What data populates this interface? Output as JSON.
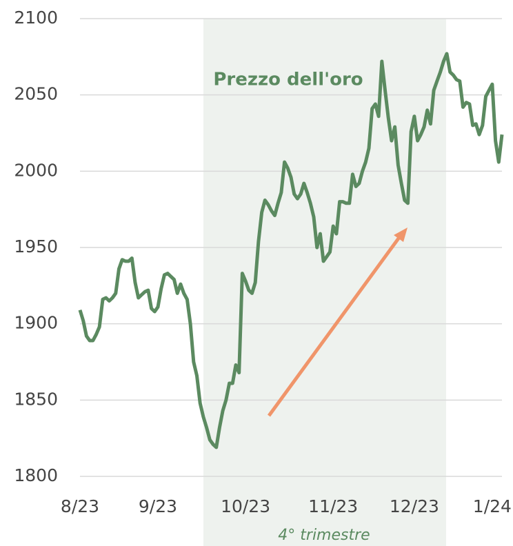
{
  "chart_data": {
    "type": "line",
    "annotations": [
      "Prezzo dell'oro",
      "4° trimestre"
    ],
    "categories": [
      "8/23",
      null,
      null,
      null,
      null,
      null,
      null,
      null,
      null,
      null,
      null,
      null,
      null,
      null,
      null,
      null,
      null,
      null,
      null,
      null,
      null,
      null,
      null,
      null,
      "9/23",
      null,
      null,
      null,
      null,
      null,
      null,
      null,
      null,
      null,
      null,
      null,
      null,
      null,
      null,
      null,
      null,
      null,
      null,
      null,
      null,
      null,
      null,
      null,
      null,
      null,
      null,
      "10/23",
      null,
      null,
      null,
      null,
      null,
      null,
      null,
      null,
      null,
      null,
      null,
      null,
      null,
      null,
      null,
      null,
      null,
      null,
      null,
      null,
      null,
      null,
      null,
      null,
      null,
      null,
      "11/23",
      null,
      null,
      null,
      null,
      null,
      null,
      null,
      null,
      null,
      null,
      null,
      null,
      null,
      null,
      null,
      null,
      null,
      null,
      null,
      null,
      null,
      null,
      null,
      null,
      "12/23",
      null,
      null,
      null,
      null,
      null,
      null,
      null,
      null,
      null,
      null,
      null,
      null,
      null,
      null,
      null,
      null,
      null,
      null,
      null,
      null,
      null,
      null,
      null,
      "1/24",
      null,
      null,
      null
    ],
    "series": [
      {
        "name": "Prezzo dell'oro",
        "color": "#5b8a60",
        "values": [
          1909,
          1902,
          1892,
          1889,
          1889,
          1893,
          1898,
          1916,
          1917,
          1915,
          1917,
          1920,
          1936,
          1942,
          1941,
          1941,
          1943,
          1927,
          1917,
          1919,
          1921,
          1922,
          1910,
          1908,
          1911,
          1923,
          1932,
          1933,
          1931,
          1929,
          1920,
          1926,
          1920,
          1916,
          1900,
          1875,
          1866,
          1848,
          1839,
          1832,
          1824,
          1821,
          1819,
          1832,
          1843,
          1850,
          1861,
          1861,
          1873,
          1868,
          1933,
          1928,
          1922,
          1920,
          1927,
          1954,
          1973,
          1981,
          1978,
          1974,
          1971,
          1979,
          1986,
          2006,
          2002,
          1996,
          1985,
          1982,
          1985,
          1992,
          1986,
          1979,
          1970,
          1950,
          1959,
          1941,
          1944,
          1947,
          1964,
          1959,
          1980,
          1980,
          1979,
          1979,
          1998,
          1990,
          1992,
          2000,
          2006,
          2015,
          2041,
          2044,
          2036,
          2072,
          2053,
          2035,
          2020,
          2029,
          2004,
          1992,
          1981,
          1979,
          2026,
          2036,
          2020,
          2024,
          2029,
          2040,
          2031,
          2053,
          2059,
          2065,
          2072,
          2077,
          2065,
          2063,
          2060,
          2059,
          2042,
          2045,
          2044,
          2030,
          2031,
          2024,
          2030,
          2049,
          2053,
          2057,
          2020,
          2006,
          2024
        ]
      }
    ],
    "ylim": [
      1800,
      2100
    ],
    "yticks": [
      1800,
      1850,
      1900,
      1950,
      2000,
      2050,
      2100
    ],
    "grid": true
  }
}
